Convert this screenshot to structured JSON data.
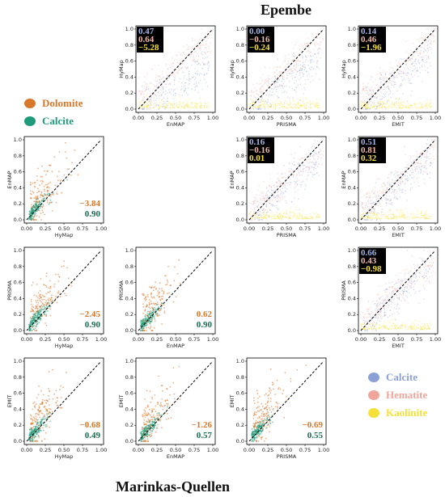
{
  "titles": {
    "top": "Epembe",
    "bottom": "Marinkas-Quellen"
  },
  "legend_left": [
    {
      "label": "Dolomite",
      "color": "#d9772a"
    },
    {
      "label": "Calcite",
      "color": "#1f9a7a"
    }
  ],
  "legend_right": [
    {
      "label": "Calcite",
      "color": "#8aa0d6"
    },
    {
      "label": "Hematite",
      "color": "#f0a59a"
    },
    {
      "label": "Kaolinite",
      "color": "#f5e03a"
    }
  ],
  "chart_data": [
    {
      "type": "scatter",
      "group": "Epembe",
      "xlabel": "EnMAP",
      "ylabel": "HyMap",
      "xlim": [
        0,
        1
      ],
      "ylim": [
        0,
        1
      ],
      "xticks": [
        "0.00",
        "0.25",
        "0.50",
        "0.75",
        "1.00"
      ],
      "yticks": [
        "0.0",
        "0.2",
        "0.4",
        "0.6",
        "0.8",
        "1.0"
      ],
      "series": [
        {
          "name": "Calcite",
          "color": "#8aa0d6"
        },
        {
          "name": "Hematite",
          "color": "#f0a59a"
        },
        {
          "name": "Kaolinite",
          "color": "#f5e03a"
        }
      ],
      "stats": [
        {
          "label": "0.47",
          "color": "#9fb3e6"
        },
        {
          "label": "0.64",
          "color": "#f0b7a8"
        },
        {
          "label": "−5.28",
          "color": "#f5e03a"
        }
      ]
    },
    {
      "type": "scatter",
      "group": "Epembe",
      "xlabel": "PRISMA",
      "ylabel": "HyMap",
      "xlim": [
        0,
        1
      ],
      "ylim": [
        0,
        1
      ],
      "xticks": [
        "0.00",
        "0.25",
        "0.50",
        "0.75",
        "1.00"
      ],
      "yticks": [
        "0.0",
        "0.2",
        "0.4",
        "0.6",
        "0.8",
        "1.0"
      ],
      "series": [
        {
          "name": "Calcite",
          "color": "#8aa0d6"
        },
        {
          "name": "Hematite",
          "color": "#f0a59a"
        },
        {
          "name": "Kaolinite",
          "color": "#f5e03a"
        }
      ],
      "stats": [
        {
          "label": "0.00",
          "color": "#9fb3e6"
        },
        {
          "label": "−0.16",
          "color": "#f0b7a8"
        },
        {
          "label": "−0.24",
          "color": "#f5e03a"
        }
      ]
    },
    {
      "type": "scatter",
      "group": "Epembe",
      "xlabel": "EMIT",
      "ylabel": "HyMap",
      "xlim": [
        0,
        1
      ],
      "ylim": [
        0,
        1
      ],
      "xticks": [
        "0.00",
        "0.25",
        "0.50",
        "0.75",
        "1.00"
      ],
      "yticks": [
        "0.0",
        "0.2",
        "0.4",
        "0.6",
        "0.8",
        "1.0"
      ],
      "series": [
        {
          "name": "Calcite",
          "color": "#8aa0d6"
        },
        {
          "name": "Hematite",
          "color": "#f0a59a"
        },
        {
          "name": "Kaolinite",
          "color": "#f5e03a"
        }
      ],
      "stats": [
        {
          "label": "0.14",
          "color": "#9fb3e6"
        },
        {
          "label": "0.46",
          "color": "#f0b7a8"
        },
        {
          "label": "−1.96",
          "color": "#f5e03a"
        }
      ]
    },
    {
      "type": "scatter",
      "group": "Epembe",
      "xlabel": "PRISMA",
      "ylabel": "EnMAP",
      "xlim": [
        0,
        1
      ],
      "ylim": [
        0,
        1
      ],
      "xticks": [
        "0.00",
        "0.25",
        "0.50",
        "0.75",
        "1.00"
      ],
      "yticks": [
        "0.0",
        "0.2",
        "0.4",
        "0.6",
        "0.8",
        "1.0"
      ],
      "series": [
        {
          "name": "Calcite",
          "color": "#8aa0d6"
        },
        {
          "name": "Hematite",
          "color": "#f0a59a"
        },
        {
          "name": "Kaolinite",
          "color": "#f5e03a"
        }
      ],
      "stats": [
        {
          "label": "0.16",
          "color": "#9fb3e6"
        },
        {
          "label": "−0.16",
          "color": "#f0b7a8"
        },
        {
          "label": "0.01",
          "color": "#f5e03a"
        }
      ]
    },
    {
      "type": "scatter",
      "group": "Epembe",
      "xlabel": "EMIT",
      "ylabel": "EnMAP",
      "xlim": [
        0,
        1
      ],
      "ylim": [
        0,
        1
      ],
      "xticks": [
        "0.00",
        "0.25",
        "0.50",
        "0.75",
        "1.00"
      ],
      "yticks": [
        "0.0",
        "0.2",
        "0.4",
        "0.6",
        "0.8",
        "1.0"
      ],
      "series": [
        {
          "name": "Calcite",
          "color": "#8aa0d6"
        },
        {
          "name": "Hematite",
          "color": "#f0a59a"
        },
        {
          "name": "Kaolinite",
          "color": "#f5e03a"
        }
      ],
      "stats": [
        {
          "label": "0.51",
          "color": "#9fb3e6"
        },
        {
          "label": "0.81",
          "color": "#f0b7a8"
        },
        {
          "label": "0.32",
          "color": "#f5e03a"
        }
      ]
    },
    {
      "type": "scatter",
      "group": "Epembe",
      "xlabel": "EMIT",
      "ylabel": "PRISMA",
      "xlim": [
        0,
        1
      ],
      "ylim": [
        0,
        1
      ],
      "xticks": [
        "0.00",
        "0.25",
        "0.50",
        "0.75",
        "1.00"
      ],
      "yticks": [
        "0.0",
        "0.2",
        "0.4",
        "0.6",
        "0.8",
        "1.0"
      ],
      "series": [
        {
          "name": "Calcite",
          "color": "#8aa0d6"
        },
        {
          "name": "Hematite",
          "color": "#f0a59a"
        },
        {
          "name": "Kaolinite",
          "color": "#f5e03a"
        }
      ],
      "stats": [
        {
          "label": "0.66",
          "color": "#9fb3e6"
        },
        {
          "label": "0.43",
          "color": "#f0b7a8"
        },
        {
          "label": "−0.98",
          "color": "#f5e03a"
        }
      ]
    },
    {
      "type": "scatter",
      "group": "Marinkas-Quellen",
      "xlabel": "HyMap",
      "ylabel": "EnMAP",
      "xlim": [
        0,
        1
      ],
      "ylim": [
        0,
        1
      ],
      "xticks": [
        "0.00",
        "0.25",
        "0.50",
        "0.75",
        "1.00"
      ],
      "yticks": [
        "0.0",
        "0.2",
        "0.4",
        "0.6",
        "0.8",
        "1.0"
      ],
      "series": [
        {
          "name": "Dolomite",
          "color": "#d9772a"
        },
        {
          "name": "Calcite",
          "color": "#1f9a7a"
        }
      ],
      "stats": [
        {
          "label": "−3.84",
          "color": "#d9772a"
        },
        {
          "label": "0.90",
          "color": "#1a6b52"
        }
      ]
    },
    {
      "type": "scatter",
      "group": "Marinkas-Quellen",
      "xlabel": "HyMap",
      "ylabel": "PRISMA",
      "xlim": [
        0,
        1
      ],
      "ylim": [
        0,
        1
      ],
      "xticks": [
        "0.00",
        "0.25",
        "0.50",
        "0.75",
        "1.00"
      ],
      "yticks": [
        "0.0",
        "0.2",
        "0.4",
        "0.6",
        "0.8",
        "1.0"
      ],
      "series": [
        {
          "name": "Dolomite",
          "color": "#d9772a"
        },
        {
          "name": "Calcite",
          "color": "#1f9a7a"
        }
      ],
      "stats": [
        {
          "label": "−2.45",
          "color": "#d9772a"
        },
        {
          "label": "0.90",
          "color": "#1a6b52"
        }
      ]
    },
    {
      "type": "scatter",
      "group": "Marinkas-Quellen",
      "xlabel": "EnMAP",
      "ylabel": "PRISMA",
      "xlim": [
        0,
        1
      ],
      "ylim": [
        0,
        1
      ],
      "xticks": [
        "0.00",
        "0.25",
        "0.50",
        "0.75",
        "1.00"
      ],
      "yticks": [
        "0.0",
        "0.2",
        "0.4",
        "0.6",
        "0.8",
        "1.0"
      ],
      "series": [
        {
          "name": "Dolomite",
          "color": "#d9772a"
        },
        {
          "name": "Calcite",
          "color": "#1f9a7a"
        }
      ],
      "stats": [
        {
          "label": "0.62",
          "color": "#d9772a"
        },
        {
          "label": "0.90",
          "color": "#1a6b52"
        }
      ]
    },
    {
      "type": "scatter",
      "group": "Marinkas-Quellen",
      "xlabel": "HyMap",
      "ylabel": "EMIT",
      "xlim": [
        0,
        1
      ],
      "ylim": [
        0,
        1
      ],
      "xticks": [
        "0.00",
        "0.25",
        "0.50",
        "0.75",
        "1.00"
      ],
      "yticks": [
        "0.0",
        "0.2",
        "0.4",
        "0.6",
        "0.8",
        "1.0"
      ],
      "series": [
        {
          "name": "Dolomite",
          "color": "#d9772a"
        },
        {
          "name": "Calcite",
          "color": "#1f9a7a"
        }
      ],
      "stats": [
        {
          "label": "−0.68",
          "color": "#d9772a"
        },
        {
          "label": "0.49",
          "color": "#1a6b52"
        }
      ]
    },
    {
      "type": "scatter",
      "group": "Marinkas-Quellen",
      "xlabel": "EnMAP",
      "ylabel": "EMIT",
      "xlim": [
        0,
        1
      ],
      "ylim": [
        0,
        1
      ],
      "xticks": [
        "0.00",
        "0.25",
        "0.50",
        "0.75",
        "1.00"
      ],
      "yticks": [
        "0.0",
        "0.2",
        "0.4",
        "0.6",
        "0.8",
        "1.0"
      ],
      "series": [
        {
          "name": "Dolomite",
          "color": "#d9772a"
        },
        {
          "name": "Calcite",
          "color": "#1f9a7a"
        }
      ],
      "stats": [
        {
          "label": "−1.26",
          "color": "#d9772a"
        },
        {
          "label": "0.57",
          "color": "#1a6b52"
        }
      ]
    },
    {
      "type": "scatter",
      "group": "Marinkas-Quellen",
      "xlabel": "PRISMA",
      "ylabel": "EMIT",
      "xlim": [
        0,
        1
      ],
      "ylim": [
        0,
        1
      ],
      "xticks": [
        "0.00",
        "0.25",
        "0.50",
        "0.75",
        "1.00"
      ],
      "yticks": [
        "0.0",
        "0.2",
        "0.4",
        "0.6",
        "0.8",
        "1.0"
      ],
      "series": [
        {
          "name": "Dolomite",
          "color": "#d9772a"
        },
        {
          "name": "Calcite",
          "color": "#1f9a7a"
        }
      ],
      "stats": [
        {
          "label": "−0.69",
          "color": "#d9772a"
        },
        {
          "label": "0.55",
          "color": "#1a6b52"
        }
      ]
    }
  ]
}
